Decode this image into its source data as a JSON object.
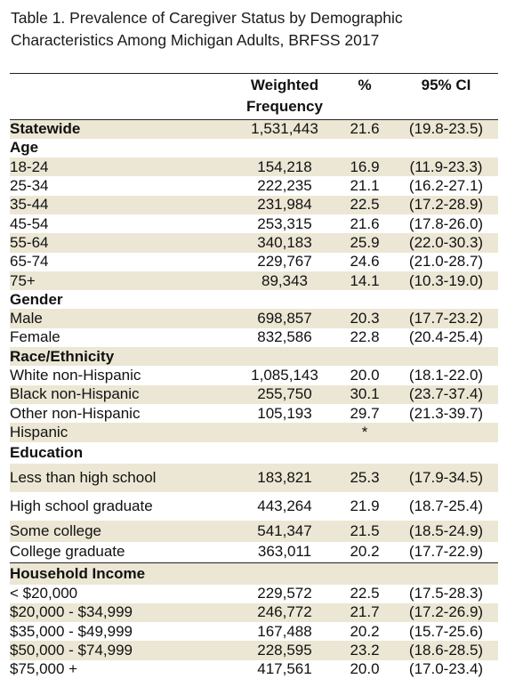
{
  "caption": {
    "line1": "Table 1. Prevalence of Caregiver Status by Demographic",
    "line2": "Characteristics Among Michigan Adults, BRFSS 2017"
  },
  "header": {
    "freq_line1": "Weighted",
    "freq_line2": "Frequency",
    "pct": "%",
    "ci": "95% CI"
  },
  "rows": {
    "statewide": {
      "label": "Statewide",
      "freq": "1,531,443",
      "pct": "21.6",
      "ci": "(19.8-23.5)"
    },
    "age": {
      "label": "Age"
    },
    "age_18_24": {
      "label": "18-24",
      "freq": "154,218",
      "pct": "16.9",
      "ci": "(11.9-23.3)"
    },
    "age_25_34": {
      "label": "25-34",
      "freq": "222,235",
      "pct": "21.1",
      "ci": "(16.2-27.1)"
    },
    "age_35_44": {
      "label": "35-44",
      "freq": "231,984",
      "pct": "22.5",
      "ci": "(17.2-28.9)"
    },
    "age_45_54": {
      "label": "45-54",
      "freq": "253,315",
      "pct": "21.6",
      "ci": "(17.8-26.0)"
    },
    "age_55_64": {
      "label": "55-64",
      "freq": "340,183",
      "pct": "25.9",
      "ci": "(22.0-30.3)"
    },
    "age_65_74": {
      "label": "65-74",
      "freq": "229,767",
      "pct": "24.6",
      "ci": "(21.0-28.7)"
    },
    "age_75": {
      "label": "75+",
      "freq": "89,343",
      "pct": "14.1",
      "ci": "(10.3-19.0)"
    },
    "gender": {
      "label": "Gender"
    },
    "male": {
      "label": "Male",
      "freq": "698,857",
      "pct": "20.3",
      "ci": "(17.7-23.2)"
    },
    "female": {
      "label": "Female",
      "freq": "832,586",
      "pct": "22.8",
      "ci": "(20.4-25.4)"
    },
    "race": {
      "label": "Race/Ethnicity"
    },
    "white": {
      "label": "White non-Hispanic",
      "freq": "1,085,143",
      "pct": "20.0",
      "ci": "(18.1-22.0)"
    },
    "black": {
      "label": "Black non-Hispanic",
      "freq": "255,750",
      "pct": "30.1",
      "ci": "(23.7-37.4)"
    },
    "other": {
      "label": "Other non-Hispanic",
      "freq": "105,193",
      "pct": "29.7",
      "ci": "(21.3-39.7)"
    },
    "hispanic": {
      "label": "Hispanic",
      "freq": "",
      "pct": "*",
      "ci": ""
    },
    "education": {
      "label": "Education"
    },
    "less_hs": {
      "label": "Less than high school",
      "freq": "183,821",
      "pct": "25.3",
      "ci": "(17.9-34.5)"
    },
    "hs_grad": {
      "label": "High school graduate",
      "freq": "443,264",
      "pct": "21.9",
      "ci": "(18.7-25.4)"
    },
    "some_college": {
      "label": "Some college",
      "freq": "541,347",
      "pct": "21.5",
      "ci": "(18.5-24.9)"
    },
    "college_grad": {
      "label": "College graduate",
      "freq": "363,011",
      "pct": "20.2",
      "ci": "(17.7-22.9)"
    },
    "income": {
      "label": "Household Income"
    },
    "inc_lt20": {
      "label": "< $20,000",
      "freq": "229,572",
      "pct": "22.5",
      "ci": "(17.5-28.3)"
    },
    "inc_20_35": {
      "label": "$20,000 - $34,999",
      "freq": "246,772",
      "pct": "21.7",
      "ci": "(17.2-26.9)"
    },
    "inc_35_50": {
      "label": "$35,000 - $49,999",
      "freq": "167,488",
      "pct": "20.2",
      "ci": "(15.7-25.6)"
    },
    "inc_50_75": {
      "label": "$50,000 - $74,999",
      "freq": "228,595",
      "pct": "23.2",
      "ci": "(18.6-28.5)"
    },
    "inc_75": {
      "label": "$75,000 +",
      "freq": "417,561",
      "pct": "20.0",
      "ci": "(17.0-23.4)"
    }
  }
}
